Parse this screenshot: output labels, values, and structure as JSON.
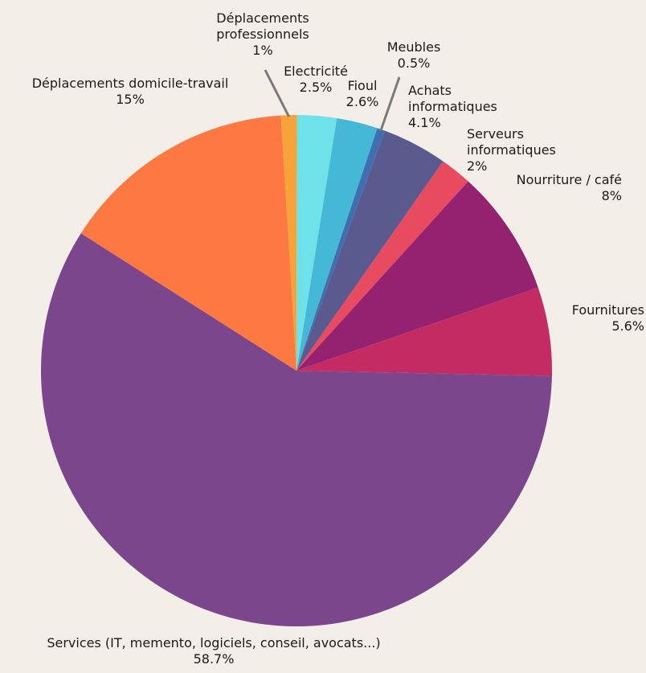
{
  "chart_data": {
    "type": "pie",
    "title": "",
    "slices": [
      {
        "label": "Déplacements professionnels",
        "label_lines": [
          "Déplacements",
          "professionnels"
        ],
        "value": 1,
        "value_text": "1%",
        "color": "#f7a33a"
      },
      {
        "label": "Electricité",
        "label_lines": [
          "Electricité"
        ],
        "value": 2.5,
        "value_text": "2.5%",
        "color": "#6ee2e8"
      },
      {
        "label": "Fioul",
        "label_lines": [
          "Fioul"
        ],
        "value": 2.6,
        "value_text": "2.6%",
        "color": "#45b8d6"
      },
      {
        "label": "Meubles",
        "label_lines": [
          "Meubles"
        ],
        "value": 0.5,
        "value_text": "0.5%",
        "color": "#3f6fb0"
      },
      {
        "label": "Achats informatiques",
        "label_lines": [
          "Achats",
          "informatiques"
        ],
        "value": 4.1,
        "value_text": "4.1%",
        "color": "#5b5a8e"
      },
      {
        "label": "Serveurs informatiques",
        "label_lines": [
          "Serveurs",
          "informatiques"
        ],
        "value": 2,
        "value_text": "2%",
        "color": "#e84a5f"
      },
      {
        "label": "Nourriture / café",
        "label_lines": [
          "Nourriture / café"
        ],
        "value": 8,
        "value_text": "8%",
        "color": "#952271"
      },
      {
        "label": "Fournitures",
        "label_lines": [
          "Fournitures"
        ],
        "value": 5.6,
        "value_text": "5.6%",
        "color": "#c42b63"
      },
      {
        "label": "Services (IT, memento, logiciels, conseil, avocats...)",
        "label_lines": [
          "Services (IT, memento, logiciels, conseil, avocats...)"
        ],
        "value": 58.7,
        "value_text": "58.7%",
        "color": "#7b468b"
      },
      {
        "label": "Déplacements domicile-travail",
        "label_lines": [
          "Déplacements domicile-travail"
        ],
        "value": 15,
        "value_text": "15%",
        "color": "#fe7841"
      }
    ]
  }
}
